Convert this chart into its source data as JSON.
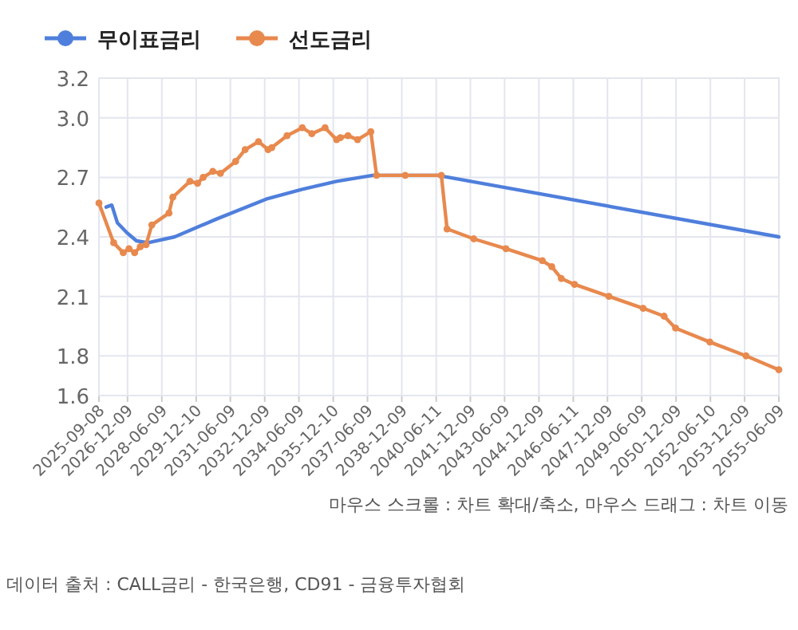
{
  "chart_data": {
    "type": "line",
    "xlim": [
      "2025-09-08",
      "2055-06-09"
    ],
    "xticks": [
      "2025-09-08",
      "2026-12-09",
      "2028-06-09",
      "2029-12-10",
      "2031-06-09",
      "2032-12-09",
      "2034-06-09",
      "2035-12-10",
      "2037-06-09",
      "2038-12-09",
      "2040-06-11",
      "2041-12-09",
      "2043-06-09",
      "2044-12-09",
      "2046-06-11",
      "2047-12-09",
      "2049-06-09",
      "2050-12-09",
      "2052-06-10",
      "2053-12-09",
      "2055-06-09"
    ],
    "ylim": [
      1.6,
      3.2
    ],
    "yticks": [
      1.6,
      1.8,
      2.1,
      2.4,
      2.7,
      {
        "value": 3,
        "label": "3.0"
      },
      3.2
    ],
    "grid": true,
    "legend": "top left",
    "line_style": "solid",
    "series": [
      {
        "name": "무이표금리",
        "color": "#4f7fdc",
        "marker": "none",
        "x": [
          "2026-01",
          "2026-04",
          "2026-07",
          "2026-12",
          "2027-05",
          "2027-11",
          "2029-01",
          "2030-11",
          "2033-01",
          "2034-08",
          "2036-02",
          "2037-09",
          "2040-07",
          "2055-06-09"
        ],
        "values": [
          2.55,
          2.56,
          2.47,
          2.42,
          2.38,
          2.37,
          2.4,
          2.49,
          2.59,
          2.64,
          2.68,
          2.71,
          2.71,
          2.4
        ]
      },
      {
        "name": "선도금리",
        "color": "#e8894e",
        "marker": "circle",
        "x": [
          "2025-09-08",
          "2026-05",
          "2026-10",
          "2027-01",
          "2027-04",
          "2027-07",
          "2027-10",
          "2028-01",
          "2028-10",
          "2028-12",
          "2029-09",
          "2030-01",
          "2030-04",
          "2030-09",
          "2031-01",
          "2031-09",
          "2032-02",
          "2032-09",
          "2033-02",
          "2033-04",
          "2033-12",
          "2034-08",
          "2035-01",
          "2035-08",
          "2036-02",
          "2036-04",
          "2036-08",
          "2037-01",
          "2037-08",
          "2037-11",
          "2039-02",
          "2040-09",
          "2040-12",
          "2042-02",
          "2043-07",
          "2045-02",
          "2045-07",
          "2045-12",
          "2046-07",
          "2048-01",
          "2049-07",
          "2050-06",
          "2050-12",
          "2052-06",
          "2054-01",
          "2055-06-09"
        ],
        "values": [
          2.57,
          2.37,
          2.32,
          2.34,
          2.32,
          2.35,
          2.36,
          2.46,
          2.52,
          2.6,
          2.68,
          2.67,
          2.7,
          2.73,
          2.72,
          2.78,
          2.84,
          2.88,
          2.84,
          2.85,
          2.91,
          2.95,
          2.92,
          2.95,
          2.89,
          2.9,
          2.91,
          2.89,
          2.93,
          2.71,
          2.71,
          2.71,
          2.44,
          2.39,
          2.34,
          2.28,
          2.25,
          2.19,
          2.16,
          2.1,
          2.04,
          2.0,
          1.94,
          1.87,
          1.8,
          1.73
        ]
      }
    ],
    "annotations": [
      "마우스 스크롤 : 차트 확대/축소, 마우스 드래그 : 차트 이동",
      "데이터 출처 : CALL금리 - 한국은행, CD91 - 금융투자협회"
    ]
  }
}
